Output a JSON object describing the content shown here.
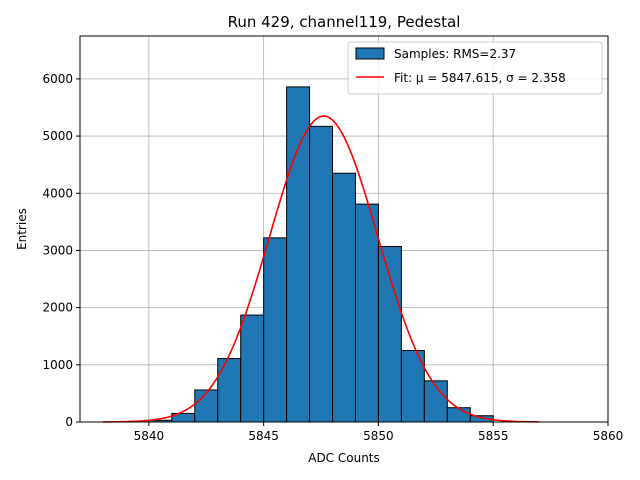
{
  "chart_data": {
    "type": "bar",
    "title": "Run 429, channel119, Pedestal",
    "xlabel": "ADC Counts",
    "ylabel": "Entries",
    "xlim": [
      5837,
      5860
    ],
    "ylim": [
      0,
      6750
    ],
    "grid": true,
    "legend_position": "top-right",
    "xticks": [
      5840,
      5845,
      5850,
      5855,
      5860
    ],
    "yticks": [
      0,
      1000,
      2000,
      3000,
      4000,
      5000,
      6000
    ],
    "histogram": {
      "name": "Samples: RMS=2.37",
      "color": "#1f77b4",
      "edge_color": "#000000",
      "bins": [
        {
          "x0": 5840,
          "x1": 5841,
          "value": 30
        },
        {
          "x0": 5841,
          "x1": 5842,
          "value": 150
        },
        {
          "x0": 5842,
          "x1": 5843,
          "value": 560
        },
        {
          "x0": 5843,
          "x1": 5844,
          "value": 1110
        },
        {
          "x0": 5844,
          "x1": 5845,
          "value": 1870
        },
        {
          "x0": 5845,
          "x1": 5846,
          "value": 3220
        },
        {
          "x0": 5846,
          "x1": 5847,
          "value": 5860
        },
        {
          "x0": 5847,
          "x1": 5848,
          "value": 5170
        },
        {
          "x0": 5848,
          "x1": 5849,
          "value": 4350
        },
        {
          "x0": 5849,
          "x1": 5850,
          "value": 3810
        },
        {
          "x0": 5850,
          "x1": 5851,
          "value": 3070
        },
        {
          "x0": 5851,
          "x1": 5852,
          "value": 1250
        },
        {
          "x0": 5852,
          "x1": 5853,
          "value": 720
        },
        {
          "x0": 5853,
          "x1": 5854,
          "value": 250
        },
        {
          "x0": 5854,
          "x1": 5855,
          "value": 110
        }
      ]
    },
    "fit": {
      "name": "Fit: μ = 5847.615, σ = 2.358",
      "color": "#ff0000",
      "mu": 5847.615,
      "sigma": 2.358,
      "amplitude": 5350,
      "x_range": [
        5838,
        5857
      ]
    }
  }
}
